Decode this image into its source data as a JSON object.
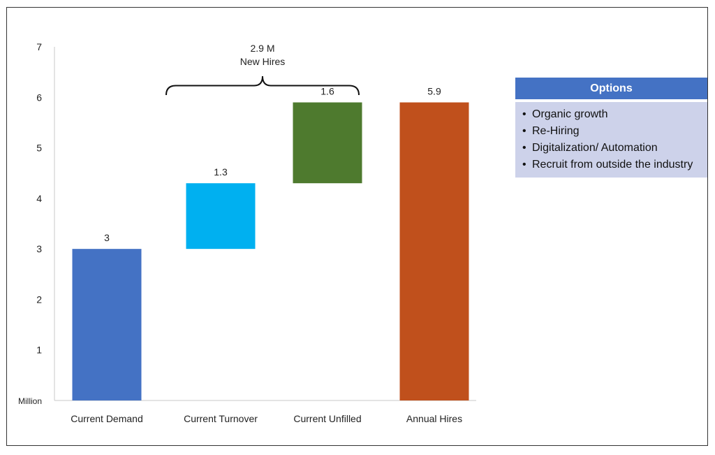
{
  "chart_data": {
    "type": "bar",
    "subtype": "waterfall",
    "categories": [
      "Current Demand",
      "Current Turnover",
      "Current Unfilled",
      "Annual Hires"
    ],
    "bars": [
      {
        "category": "Current Demand",
        "start": 0,
        "end": 3,
        "label": "3",
        "color": "#4472c4"
      },
      {
        "category": "Current Turnover",
        "start": 3,
        "end": 4.3,
        "label": "1.3",
        "color": "#00b0f0"
      },
      {
        "category": "Current Unfilled",
        "start": 4.3,
        "end": 5.9,
        "label": "1.6",
        "color": "#4e7a2e"
      },
      {
        "category": "Annual Hires",
        "start": 0,
        "end": 5.9,
        "label": "5.9",
        "color": "#c0501c"
      }
    ],
    "ylim": [
      0,
      7
    ],
    "yticks": [
      "1",
      "2",
      "3",
      "4",
      "5",
      "6",
      "7"
    ],
    "ylabel": "Million",
    "brace_annotation": {
      "line1": "2.9 M",
      "line2": "New Hires"
    }
  },
  "options": {
    "title": "Options",
    "items": [
      "Organic growth",
      "Re-Hiring",
      "Digitalization/ Automation",
      "Recruit from outside the industry"
    ]
  }
}
